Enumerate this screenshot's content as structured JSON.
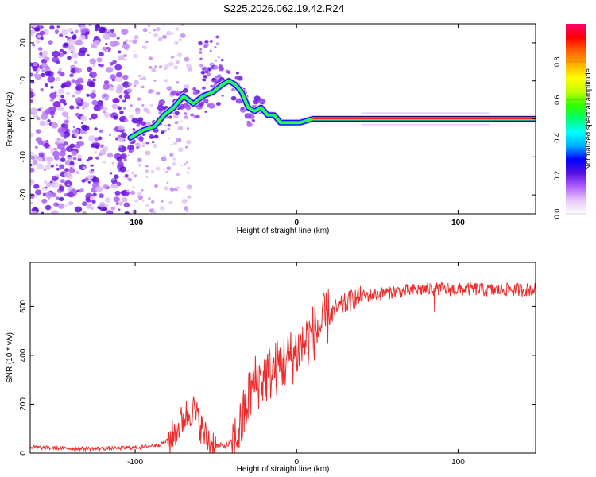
{
  "title": "S225.2026.062.19.42.R24",
  "chart_data": [
    {
      "type": "heatmap",
      "title": "S225.2026.062.19.42.R24",
      "xlabel": "Height of straight line (km)",
      "ylabel": "Frequency (Hz)",
      "xlim": [
        -165,
        148
      ],
      "ylim": [
        -25,
        25
      ],
      "x_ticks": [
        "-100",
        "0",
        "100"
      ],
      "y_ticks": [
        "-20",
        "-10",
        "0",
        "10",
        "20"
      ],
      "ridge": {
        "description": "dominant frequency track (Hz) vs height (km)",
        "x": [
          -103,
          -95,
          -88,
          -82,
          -76,
          -70,
          -64,
          -58,
          -52,
          -46,
          -42,
          -38,
          -34,
          -30,
          -26,
          -22,
          -18,
          -14,
          -10,
          -6,
          -2,
          2,
          6,
          10,
          148
        ],
        "y": [
          -5,
          -3,
          -2,
          1,
          3,
          6,
          4,
          6,
          7,
          9,
          10,
          9,
          7,
          3,
          2,
          3,
          1,
          1,
          -1,
          -1,
          -1,
          -1,
          -0.5,
          0,
          0
        ]
      },
      "colorbar": {
        "label": "Normalized spectral amplitude",
        "range": [
          0,
          1
        ],
        "ticks": [
          "0.0",
          "0.2",
          "0.4",
          "0.6",
          "0.8"
        ],
        "colors": [
          "#ffffff",
          "#e7c8f8",
          "#b060ff",
          "#5a10e0",
          "#0000ff",
          "#00b0ff",
          "#00ffff",
          "#00ff70",
          "#30ff00",
          "#c0ff00",
          "#ffff00",
          "#ffb000",
          "#ff6000",
          "#ff0000",
          "#ff0070"
        ]
      }
    },
    {
      "type": "line",
      "xlabel": "Height of straight line (km)",
      "ylabel": "SNR (10 * v/v)",
      "xlim": [
        -165,
        148
      ],
      "ylim": [
        0,
        780
      ],
      "x_ticks": [
        "-100",
        "0",
        "100"
      ],
      "y_ticks": [
        "0",
        "200",
        "400",
        "600"
      ],
      "series": [
        {
          "name": "SNR",
          "color": "#ee2b2b",
          "x": [
            -165,
            -150,
            -130,
            -110,
            -95,
            -85,
            -78,
            -72,
            -68,
            -64,
            -60,
            -56,
            -50,
            -44,
            -38,
            -34,
            -30,
            -26,
            -22,
            -18,
            -14,
            -10,
            -6,
            -2,
            2,
            6,
            10,
            15,
            20,
            25,
            30,
            35,
            40,
            50,
            60,
            70,
            80,
            90,
            100,
            110,
            120,
            130,
            140,
            148
          ],
          "values": [
            25,
            20,
            18,
            20,
            25,
            35,
            60,
            120,
            160,
            180,
            120,
            60,
            30,
            30,
            50,
            120,
            220,
            290,
            300,
            320,
            340,
            360,
            380,
            400,
            430,
            460,
            490,
            520,
            560,
            590,
            610,
            630,
            640,
            650,
            660,
            665,
            670,
            670,
            668,
            672,
            665,
            670,
            668,
            670
          ]
        }
      ]
    }
  ]
}
